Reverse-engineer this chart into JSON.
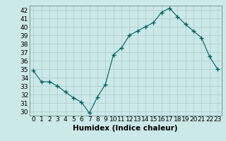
{
  "x": [
    0,
    1,
    2,
    3,
    4,
    5,
    6,
    7,
    8,
    9,
    10,
    11,
    12,
    13,
    14,
    15,
    16,
    17,
    18,
    19,
    20,
    21,
    22,
    23
  ],
  "y": [
    34.8,
    33.5,
    33.5,
    33.0,
    32.3,
    31.6,
    31.1,
    29.8,
    31.7,
    33.2,
    36.7,
    37.5,
    39.0,
    39.5,
    40.0,
    40.5,
    41.7,
    42.2,
    41.2,
    40.3,
    39.5,
    38.7,
    36.5,
    35.0
  ],
  "xlabel": "Humidex (Indice chaleur)",
  "ylim": [
    29.5,
    42.5
  ],
  "xlim": [
    -0.5,
    23.5
  ],
  "yticks": [
    30,
    31,
    32,
    33,
    34,
    35,
    36,
    37,
    38,
    39,
    40,
    41,
    42
  ],
  "xticks": [
    0,
    1,
    2,
    3,
    4,
    5,
    6,
    7,
    8,
    9,
    10,
    11,
    12,
    13,
    14,
    15,
    16,
    17,
    18,
    19,
    20,
    21,
    22,
    23
  ],
  "line_color": "#006060",
  "marker_color": "#006060",
  "bg_color": "#cce8e8",
  "grid_color": "#aacccc",
  "xlabel_fontsize": 7.5,
  "tick_fontsize": 6.5
}
